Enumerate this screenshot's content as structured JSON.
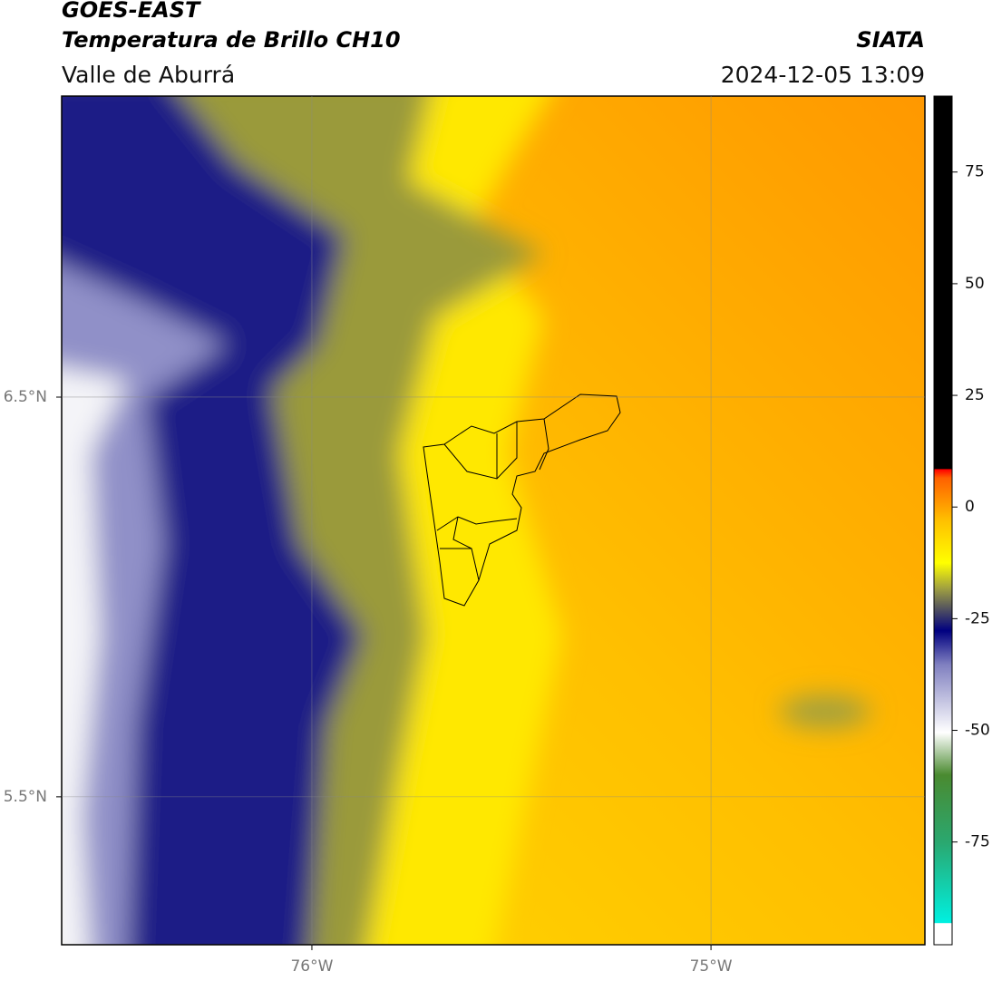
{
  "header": {
    "title": "GOES-EAST",
    "subtitle": "Temperatura de Brillo CH10",
    "source": "SIATA",
    "region": "Valle de Aburrá",
    "datetime": "2024-12-05 13:09"
  },
  "map": {
    "xlim": [
      -76.627,
      -74.464
    ],
    "ylim": [
      5.13,
      7.253
    ],
    "xticks": [
      {
        "value": -76,
        "label": "76°W"
      },
      {
        "value": -75,
        "label": "75°W"
      }
    ],
    "yticks": [
      {
        "value": 6.5,
        "label": "6.5°N"
      },
      {
        "value": 5.5,
        "label": "5.5°N"
      }
    ],
    "grid": true
  },
  "colorbar": {
    "lim": [
      -98,
      92
    ],
    "ticks": [
      -75,
      -50,
      -25,
      0,
      25,
      50,
      75
    ]
  }
}
